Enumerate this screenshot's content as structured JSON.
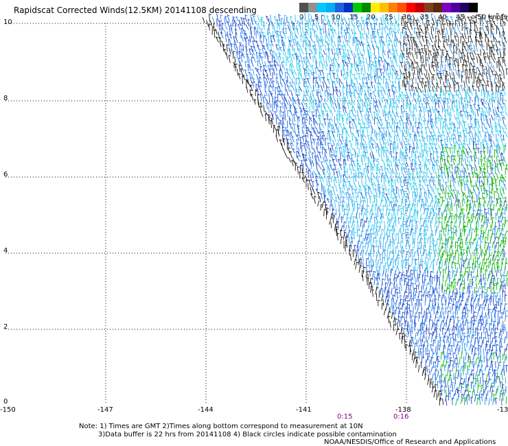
{
  "title": "Rapidscat Corrected Winds(12.5KM) 20141108 descending",
  "colorbar": {
    "colors": [
      "#505050",
      "#909090",
      "#00c8ff",
      "#00b0f0",
      "#2060e0",
      "#0030c0",
      "#00c800",
      "#008800",
      "#ffee00",
      "#ffc000",
      "#ff8000",
      "#ff5000",
      "#ff0000",
      "#c00000",
      "#804020",
      "#5a2a10",
      "#8000c0",
      "#5000a0",
      "#200060",
      "#000000"
    ],
    "ticks": [
      "0",
      "5",
      "10",
      "15",
      "20",
      "25",
      "30",
      "35",
      "40",
      "45",
      ">50 knots"
    ]
  },
  "axes": {
    "y_ticks": [
      "10",
      "8",
      "6",
      "4",
      "2",
      "0"
    ],
    "x_ticks": [
      "-150",
      "-147",
      "-144",
      "-141",
      "-138",
      "-13"
    ]
  },
  "time_labels": [
    "0:15",
    "0:16"
  ],
  "notes": [
    "Note: 1) Times are GMT 2)Times along bottom correspond to measurement at 10N",
    "3)Data buffer is 22 hrs from 20141108 4) Black circles indicate possible contamination"
  ],
  "credit": "NOAA/NESDIS/Office of Research and Applications"
}
